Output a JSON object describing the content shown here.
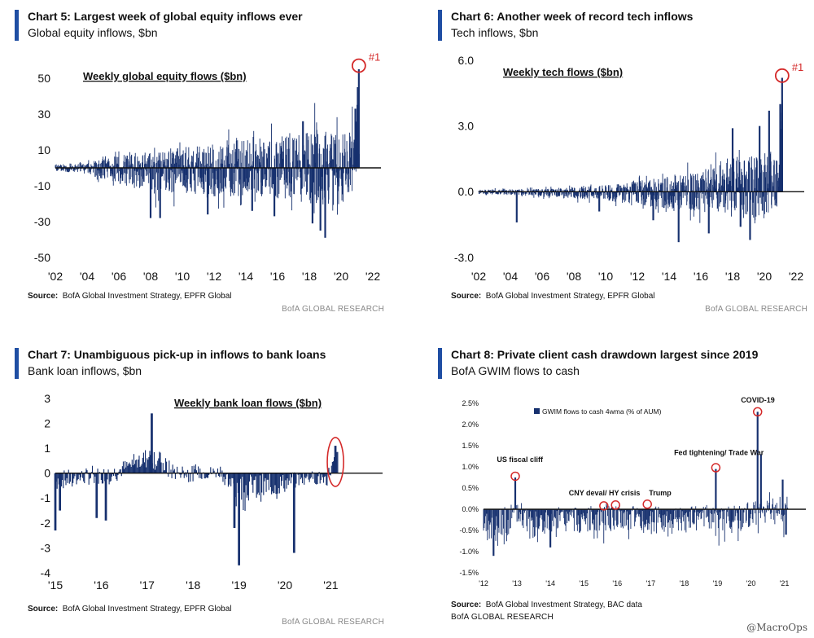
{
  "colors": {
    "bar": "#16306e",
    "accent": "#1f4ea3",
    "highlight": "#d42a2a",
    "research": "#888888"
  },
  "chart_data": [
    {
      "type": "bar",
      "title": "Chart 5: Largest week of global equity inflows ever",
      "subtitle": "Global equity inflows, $bn",
      "inner_label": "Weekly global equity flows ($bn)",
      "source_label": "Source:",
      "source": "BofA Global Investment Strategy, EPFR Global",
      "research": "BofA GLOBAL RESEARCH",
      "x_range": [
        2002,
        2022
      ],
      "ylim": [
        -50,
        60
      ],
      "yticks": [
        {
          "v": 50,
          "label": "50"
        },
        {
          "v": 30,
          "label": "30"
        },
        {
          "v": 10,
          "label": "10"
        },
        {
          "v": -10,
          "label": "-10"
        },
        {
          "v": -30,
          "label": "-30"
        },
        {
          "v": -50,
          "label": "-50"
        }
      ],
      "xticks": [
        {
          "v": 2002,
          "label": "'02"
        },
        {
          "v": 2004,
          "label": "'04"
        },
        {
          "v": 2006,
          "label": "'06"
        },
        {
          "v": 2008,
          "label": "'08"
        },
        {
          "v": 2010,
          "label": "'10"
        },
        {
          "v": 2012,
          "label": "'12"
        },
        {
          "v": 2014,
          "label": "'14"
        },
        {
          "v": 2016,
          "label": "'16"
        },
        {
          "v": 2018,
          "label": "'18"
        },
        {
          "v": 2020,
          "label": "'20"
        },
        {
          "v": 2022,
          "label": "'22"
        }
      ],
      "series_range": [
        2002.0,
        2021.15
      ],
      "envelope": [
        {
          "x": 2002.0,
          "hi": 2,
          "lo": -2
        },
        {
          "x": 2004.0,
          "hi": 3,
          "lo": -4
        },
        {
          "x": 2006.0,
          "hi": 7,
          "lo": -9
        },
        {
          "x": 2008.0,
          "hi": 9,
          "lo": -14
        },
        {
          "x": 2010.0,
          "hi": 12,
          "lo": -14
        },
        {
          "x": 2012.0,
          "hi": 14,
          "lo": -16
        },
        {
          "x": 2014.0,
          "hi": 18,
          "lo": -16
        },
        {
          "x": 2016.0,
          "hi": 16,
          "lo": -17
        },
        {
          "x": 2018.0,
          "hi": 22,
          "lo": -20
        },
        {
          "x": 2019.5,
          "hi": 20,
          "lo": -22
        },
        {
          "x": 2020.8,
          "hi": 22,
          "lo": -16
        },
        {
          "x": 2021.15,
          "hi": 46,
          "lo": 4
        }
      ],
      "spikes": [
        {
          "x": 2008.0,
          "y": -28
        },
        {
          "x": 2008.6,
          "y": -28
        },
        {
          "x": 2011.6,
          "y": -26
        },
        {
          "x": 2014.4,
          "y": -24
        },
        {
          "x": 2015.8,
          "y": -27
        },
        {
          "x": 2018.2,
          "y": -31
        },
        {
          "x": 2018.7,
          "y": -35
        },
        {
          "x": 2019.0,
          "y": -39
        },
        {
          "x": 2017.6,
          "y": 26
        },
        {
          "x": 2020.9,
          "y": 33
        },
        {
          "x": 2021.05,
          "y": 45
        },
        {
          "x": 2021.12,
          "y": 55
        }
      ],
      "marker": {
        "x": 2021.12,
        "y": 57,
        "label": "#1"
      },
      "seed": 5
    },
    {
      "type": "bar",
      "title": "Chart 6: Another week of record tech inflows",
      "subtitle": "Tech inflows, $bn",
      "inner_label": "Weekly tech flows ($bn)",
      "source_label": "Source:",
      "source": "BofA Global Investment Strategy, EPFR Global",
      "research": "BofA GLOBAL RESEARCH",
      "x_range": [
        2002,
        2022
      ],
      "ylim": [
        -3,
        6
      ],
      "yticks": [
        {
          "v": 6,
          "label": "6.0"
        },
        {
          "v": 3,
          "label": "3.0"
        },
        {
          "v": 0,
          "label": "0.0"
        },
        {
          "v": -3,
          "label": "-3.0"
        }
      ],
      "xticks": [
        {
          "v": 2002,
          "label": "'02"
        },
        {
          "v": 2004,
          "label": "'04"
        },
        {
          "v": 2006,
          "label": "'06"
        },
        {
          "v": 2008,
          "label": "'08"
        },
        {
          "v": 2010,
          "label": "'10"
        },
        {
          "v": 2012,
          "label": "'12"
        },
        {
          "v": 2014,
          "label": "'14"
        },
        {
          "v": 2016,
          "label": "'16"
        },
        {
          "v": 2018,
          "label": "'18"
        },
        {
          "v": 2020,
          "label": "'20"
        },
        {
          "v": 2022,
          "label": "'22"
        }
      ],
      "series_range": [
        2002.0,
        2021.15
      ],
      "envelope": [
        {
          "x": 2002.0,
          "hi": 0.1,
          "lo": -0.1
        },
        {
          "x": 2006.0,
          "hi": 0.15,
          "lo": -0.2
        },
        {
          "x": 2010.0,
          "hi": 0.3,
          "lo": -0.4
        },
        {
          "x": 2013.0,
          "hi": 0.6,
          "lo": -0.7
        },
        {
          "x": 2016.0,
          "hi": 0.9,
          "lo": -0.9
        },
        {
          "x": 2018.0,
          "hi": 1.8,
          "lo": -1.3
        },
        {
          "x": 2019.5,
          "hi": 1.6,
          "lo": -1.2
        },
        {
          "x": 2020.8,
          "hi": 2.4,
          "lo": -0.8
        },
        {
          "x": 2021.15,
          "hi": 4.5,
          "lo": 0.5
        }
      ],
      "spikes": [
        {
          "x": 2004.4,
          "y": -1.4
        },
        {
          "x": 2009.6,
          "y": -0.9
        },
        {
          "x": 2013.0,
          "y": -1.3
        },
        {
          "x": 2014.6,
          "y": -2.3
        },
        {
          "x": 2016.5,
          "y": -1.9
        },
        {
          "x": 2018.5,
          "y": -1.6
        },
        {
          "x": 2019.1,
          "y": -2.2
        },
        {
          "x": 2018.0,
          "y": 2.9
        },
        {
          "x": 2019.7,
          "y": 3.0
        },
        {
          "x": 2020.3,
          "y": 3.7
        },
        {
          "x": 2021.0,
          "y": 4.0
        },
        {
          "x": 2021.12,
          "y": 5.2
        }
      ],
      "marker": {
        "x": 2021.12,
        "y": 5.3,
        "label": "#1"
      },
      "seed": 6
    },
    {
      "type": "bar",
      "title": "Chart 7: Unambiguous pick-up in inflows to bank loans",
      "subtitle": "Bank loan inflows, $bn",
      "inner_label": "Weekly bank loan flows ($bn)",
      "source_label": "Source:",
      "source": "BofA Global Investment Strategy, EPFR Global",
      "research": "BofA GLOBAL RESEARCH",
      "x_range": [
        2015,
        2021.95
      ],
      "ylim": [
        -4,
        3
      ],
      "yticks": [
        {
          "v": 3,
          "label": "3"
        },
        {
          "v": 2,
          "label": "2"
        },
        {
          "v": 1,
          "label": "1"
        },
        {
          "v": 0,
          "label": "0"
        },
        {
          "v": -1,
          "label": "-1"
        },
        {
          "v": -2,
          "label": "-2"
        },
        {
          "v": -3,
          "label": "-3"
        },
        {
          "v": -4,
          "label": "-4"
        }
      ],
      "xticks": [
        {
          "v": 2015,
          "label": "'15"
        },
        {
          "v": 2016,
          "label": "'16"
        },
        {
          "v": 2017,
          "label": "'17"
        },
        {
          "v": 2018,
          "label": "'18"
        },
        {
          "v": 2019,
          "label": "'19"
        },
        {
          "v": 2020,
          "label": "'20"
        },
        {
          "v": 2021,
          "label": "'21"
        }
      ],
      "series_range": [
        2015.0,
        2021.15
      ],
      "envelope": [
        {
          "x": 2015.0,
          "hi": 0.1,
          "lo": -0.7
        },
        {
          "x": 2015.6,
          "hi": 0.2,
          "lo": -0.5
        },
        {
          "x": 2016.2,
          "hi": 0.3,
          "lo": -0.4
        },
        {
          "x": 2016.8,
          "hi": 0.8,
          "lo": 0.1
        },
        {
          "x": 2017.1,
          "hi": 1.2,
          "lo": 0.2
        },
        {
          "x": 2017.5,
          "hi": 0.5,
          "lo": -0.3
        },
        {
          "x": 2018.0,
          "hi": 0.3,
          "lo": -0.3
        },
        {
          "x": 2018.6,
          "hi": 0.3,
          "lo": -0.2
        },
        {
          "x": 2018.85,
          "hi": 0.0,
          "lo": -1.0
        },
        {
          "x": 2019.4,
          "hi": 0.0,
          "lo": -1.2
        },
        {
          "x": 2020.0,
          "hi": 0.0,
          "lo": -0.8
        },
        {
          "x": 2020.5,
          "hi": 0.1,
          "lo": -0.4
        },
        {
          "x": 2020.9,
          "hi": 0.1,
          "lo": -0.6
        },
        {
          "x": 2021.15,
          "hi": 1.0,
          "lo": 0.5
        }
      ],
      "spikes": [
        {
          "x": 2015.0,
          "y": -2.3
        },
        {
          "x": 2015.1,
          "y": -1.5
        },
        {
          "x": 2015.9,
          "y": -1.8
        },
        {
          "x": 2016.1,
          "y": -1.9
        },
        {
          "x": 2017.1,
          "y": 2.4
        },
        {
          "x": 2018.9,
          "y": -2.2
        },
        {
          "x": 2019.0,
          "y": -3.7
        },
        {
          "x": 2020.2,
          "y": -3.2
        },
        {
          "x": 2021.1,
          "y": 1.1
        }
      ],
      "marker": {
        "x": 2021.1,
        "y": 0.45,
        "label": ""
      },
      "seed": 7
    },
    {
      "type": "area",
      "title": "Chart 8: Private client cash drawdown  largest since 2019",
      "subtitle": "BofA GWIM flows to cash",
      "legend": "GWIM flows to cash 4wma (% of AUM)",
      "source_label": "Source:",
      "source": "BofA Global Investment Strategy, BAC data",
      "research": "BofA GLOBAL RESEARCH",
      "x_range": [
        2012,
        2021.4
      ],
      "ylim": [
        -1.5,
        2.5
      ],
      "yticks": [
        {
          "v": 2.5,
          "label": "2.5%"
        },
        {
          "v": 2.0,
          "label": "2.0%"
        },
        {
          "v": 1.5,
          "label": "1.5%"
        },
        {
          "v": 1.0,
          "label": "1.0%"
        },
        {
          "v": 0.5,
          "label": "0.5%"
        },
        {
          "v": 0.0,
          "label": "0.0%"
        },
        {
          "v": -0.5,
          "label": "-0.5%"
        },
        {
          "v": -1.0,
          "label": "-1.0%"
        },
        {
          "v": -1.5,
          "label": "-1.5%"
        }
      ],
      "xticks": [
        {
          "v": 2012,
          "label": "'12"
        },
        {
          "v": 2013,
          "label": "'13"
        },
        {
          "v": 2014,
          "label": "'14"
        },
        {
          "v": 2015,
          "label": "'15"
        },
        {
          "v": 2016,
          "label": "'16"
        },
        {
          "v": 2017,
          "label": "'17"
        },
        {
          "v": 2018,
          "label": "'18"
        },
        {
          "v": 2019,
          "label": "'19"
        },
        {
          "v": 2020,
          "label": "'20"
        },
        {
          "v": 2021,
          "label": "'21"
        }
      ],
      "series_range": [
        2012.0,
        2021.1
      ],
      "envelope": [
        {
          "x": 2012.0,
          "hi": 0.1,
          "lo": -0.9
        },
        {
          "x": 2012.5,
          "hi": 0.1,
          "lo": -1.0
        },
        {
          "x": 2013.0,
          "hi": 0.2,
          "lo": -0.4
        },
        {
          "x": 2013.5,
          "hi": 0.05,
          "lo": -0.8
        },
        {
          "x": 2014.5,
          "hi": 0.05,
          "lo": -0.6
        },
        {
          "x": 2015.5,
          "hi": 0.1,
          "lo": -0.5
        },
        {
          "x": 2016.5,
          "hi": 0.1,
          "lo": -0.6
        },
        {
          "x": 2017.5,
          "hi": 0.05,
          "lo": -0.6
        },
        {
          "x": 2018.5,
          "hi": 0.1,
          "lo": -0.5
        },
        {
          "x": 2019.5,
          "hi": 0.1,
          "lo": -0.6
        },
        {
          "x": 2020.5,
          "hi": 0.3,
          "lo": -0.3
        },
        {
          "x": 2021.1,
          "hi": 0.3,
          "lo": -0.5
        }
      ],
      "spikes": [
        {
          "x": 2012.95,
          "y": 0.75
        },
        {
          "x": 2018.95,
          "y": 0.95
        },
        {
          "x": 2020.2,
          "y": 2.3
        },
        {
          "x": 2020.3,
          "y": 1.3
        },
        {
          "x": 2020.95,
          "y": 0.7
        },
        {
          "x": 2021.05,
          "y": -0.6
        },
        {
          "x": 2012.3,
          "y": -1.1
        },
        {
          "x": 2014.0,
          "y": -0.9
        }
      ],
      "annotations": [
        {
          "text": "US fiscal cliff",
          "x": 2012.95,
          "y": 0.78,
          "lx": 2012.4,
          "ly": 1.12
        },
        {
          "text": "CNY deval/ HY crisis",
          "x": 2015.6,
          "y": 0.08,
          "lx": 2014.55,
          "ly": 0.33
        },
        {
          "text": "",
          "x": 2015.95,
          "y": 0.1,
          "lx": 0,
          "ly": 0
        },
        {
          "text": "Trump",
          "x": 2016.9,
          "y": 0.12,
          "lx": 2016.95,
          "ly": 0.33
        },
        {
          "text": "Fed tightening/ Trade War",
          "x": 2018.95,
          "y": 0.98,
          "lx": 2017.7,
          "ly": 1.28
        },
        {
          "text": "COVID-19",
          "x": 2020.2,
          "y": 2.3,
          "lx": 2019.7,
          "ly": 2.52
        }
      ],
      "seed": 8
    }
  ],
  "watermark": "@MacroOps"
}
